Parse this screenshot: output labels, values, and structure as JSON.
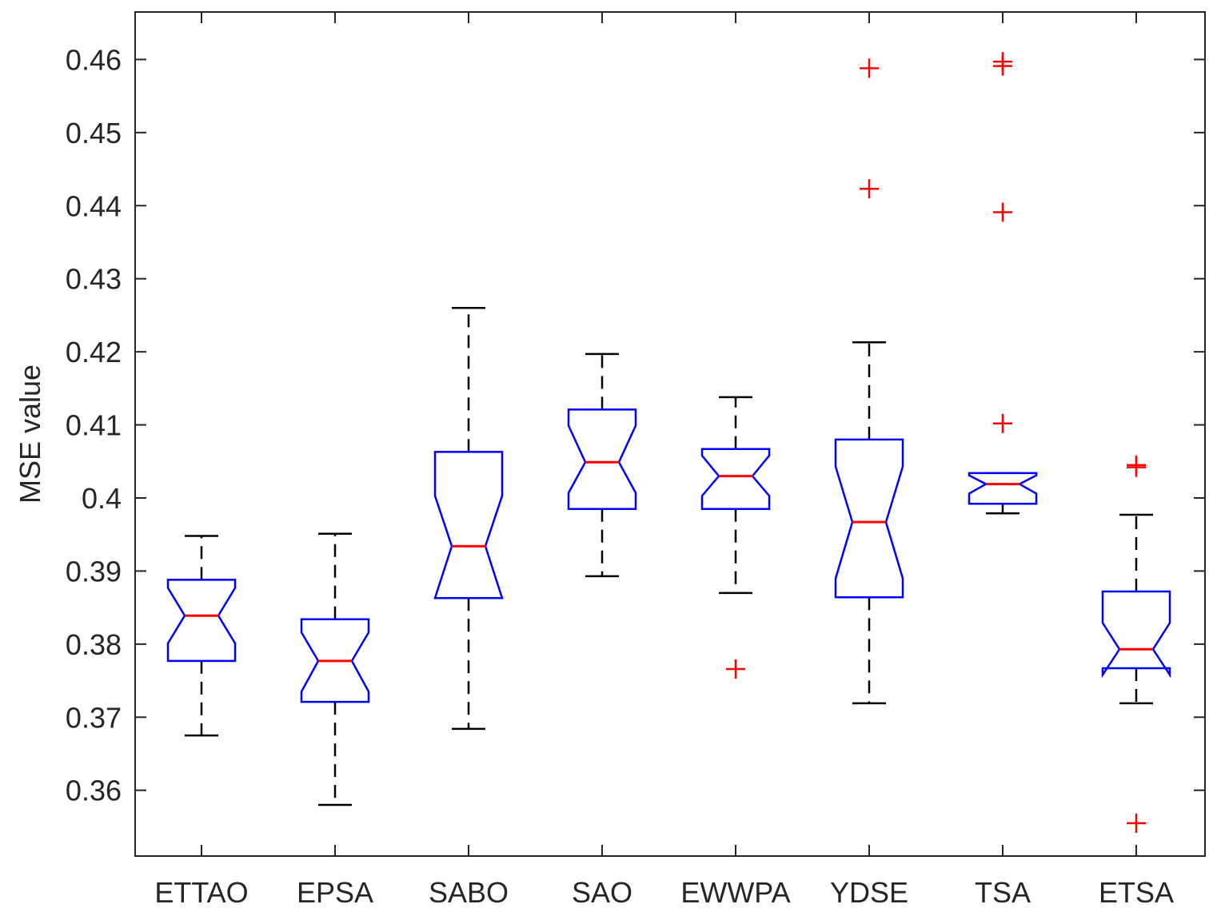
{
  "chart_data": {
    "type": "boxplot",
    "title": "",
    "xlabel": "",
    "ylabel": "MSE value",
    "ylim": [
      0.351,
      0.4665
    ],
    "yticks": [
      0.36,
      0.37,
      0.38,
      0.39,
      0.4,
      0.41,
      0.42,
      0.43,
      0.44,
      0.45,
      0.46
    ],
    "ytick_labels": [
      "0.36",
      "0.37",
      "0.38",
      "0.39",
      "0.4",
      "0.41",
      "0.42",
      "0.43",
      "0.44",
      "0.45",
      "0.46"
    ],
    "notched": true,
    "grid": false,
    "colors": {
      "box": "#0000ff",
      "median": "#ff0000",
      "whisker": "#000000",
      "outlier": "#ff0000",
      "axis": "#262626"
    },
    "categories": [
      "ETTAO",
      "EPSA",
      "SABO",
      "SAO",
      "EWWPA",
      "YDSE",
      "TSA",
      "ETSA"
    ],
    "boxes": [
      {
        "name": "ETTAO",
        "whisker_low": 0.3675,
        "q1": 0.3777,
        "notch_low": 0.3801,
        "median": 0.3839,
        "notch_high": 0.3877,
        "q3": 0.3888,
        "whisker_high": 0.3948,
        "outliers": []
      },
      {
        "name": "EPSA",
        "whisker_low": 0.358,
        "q1": 0.3721,
        "notch_low": 0.3735,
        "median": 0.3777,
        "notch_high": 0.3816,
        "q3": 0.3834,
        "whisker_high": 0.3951,
        "outliers": []
      },
      {
        "name": "SABO",
        "whisker_low": 0.3684,
        "q1": 0.3863,
        "notch_low": 0.3863,
        "median": 0.3934,
        "notch_high": 0.4003,
        "q3": 0.4063,
        "whisker_high": 0.426,
        "outliers": []
      },
      {
        "name": "SAO",
        "whisker_low": 0.3893,
        "q1": 0.3985,
        "notch_low": 0.4007,
        "median": 0.4049,
        "notch_high": 0.4099,
        "q3": 0.4121,
        "whisker_high": 0.4197,
        "outliers": []
      },
      {
        "name": "EWWPA",
        "whisker_low": 0.387,
        "q1": 0.3985,
        "notch_low": 0.4003,
        "median": 0.403,
        "notch_high": 0.4058,
        "q3": 0.4067,
        "whisker_high": 0.4138,
        "outliers": [
          0.3766
        ]
      },
      {
        "name": "YDSE",
        "whisker_low": 0.3719,
        "q1": 0.3864,
        "notch_low": 0.389,
        "median": 0.3967,
        "notch_high": 0.4043,
        "q3": 0.408,
        "whisker_high": 0.4213,
        "outliers": [
          0.4588,
          0.4423
        ]
      },
      {
        "name": "TSA",
        "whisker_low": 0.3979,
        "q1": 0.3992,
        "notch_low": 0.4006,
        "median": 0.4019,
        "notch_high": 0.4031,
        "q3": 0.4034,
        "whisker_high": 0.4034,
        "outliers": [
          0.4597,
          0.4591,
          0.4391,
          0.4102
        ]
      },
      {
        "name": "ETSA",
        "whisker_low": 0.3719,
        "q1": 0.3767,
        "notch_low": 0.3758,
        "median": 0.3793,
        "notch_high": 0.3829,
        "q3": 0.3872,
        "whisker_high": 0.3977,
        "outliers": [
          0.4045,
          0.4042,
          0.3555
        ]
      }
    ]
  }
}
